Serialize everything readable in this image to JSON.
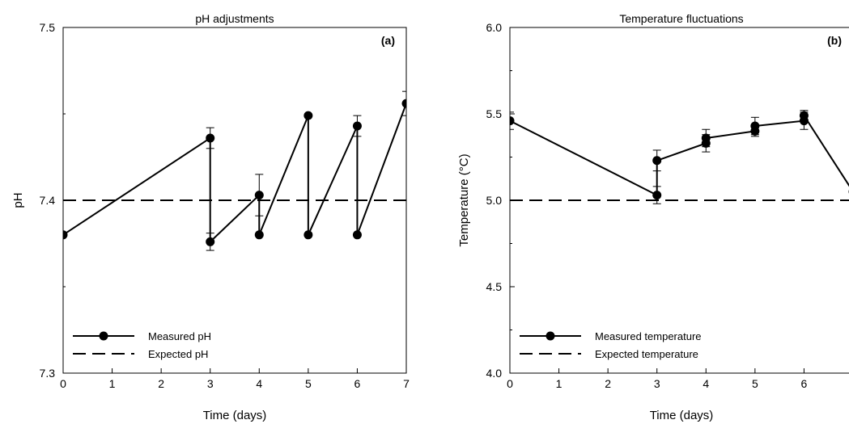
{
  "chart_data": [
    {
      "type": "line",
      "title": "pH adjustments",
      "panel_label": "(a)",
      "xlabel": "Time (days)",
      "ylabel": "pH",
      "xlim": [
        0,
        7
      ],
      "ylim": [
        7.3,
        7.5
      ],
      "x_ticks": [
        "0",
        "1",
        "2",
        "3",
        "4",
        "5",
        "6",
        "7"
      ],
      "y_ticks": [
        "7.3",
        "7.4",
        "7.5"
      ],
      "grid": false,
      "legend_position": "bottom-left",
      "series": [
        {
          "name": "Measured pH",
          "style": "solid-with-markers",
          "x": [
            0,
            3,
            3,
            4,
            4,
            5,
            5,
            6,
            6,
            7
          ],
          "y": [
            7.38,
            7.436,
            7.376,
            7.403,
            7.38,
            7.449,
            7.38,
            7.443,
            7.38,
            7.456
          ],
          "error": [
            0,
            0.006,
            0.005,
            0.012,
            0,
            0,
            0,
            0.006,
            0,
            0.007
          ]
        },
        {
          "name": "Expected pH",
          "style": "dashed",
          "x": [
            0,
            7
          ],
          "y": [
            7.4,
            7.4
          ]
        }
      ]
    },
    {
      "type": "line",
      "title": "Temperature fluctuations",
      "panel_label": "(b)",
      "xlabel": "Time (days)",
      "ylabel": "Temperature (°C)",
      "xlim": [
        0,
        7
      ],
      "ylim": [
        4.0,
        6.0
      ],
      "x_ticks": [
        "0",
        "1",
        "2",
        "3",
        "4",
        "5",
        "6"
      ],
      "y_ticks": [
        "4.0",
        "4.5",
        "5.0",
        "5.5",
        "6.0"
      ],
      "grid": false,
      "legend_position": "bottom-left",
      "series": [
        {
          "name": "Measured temperature",
          "style": "solid-with-markers",
          "x": [
            0,
            3,
            3,
            4,
            4,
            5,
            5,
            6,
            6,
            7
          ],
          "y": [
            5.46,
            5.03,
            5.23,
            5.33,
            5.36,
            5.4,
            5.43,
            5.46,
            5.49,
            5.05
          ],
          "error": [
            0.05,
            0.05,
            0.06,
            0.05,
            0.05,
            0.03,
            0.05,
            0.05,
            0.03,
            0
          ]
        },
        {
          "name": "Expected temperature",
          "style": "dashed",
          "x": [
            0,
            7
          ],
          "y": [
            5.0,
            5.0
          ]
        }
      ]
    }
  ]
}
